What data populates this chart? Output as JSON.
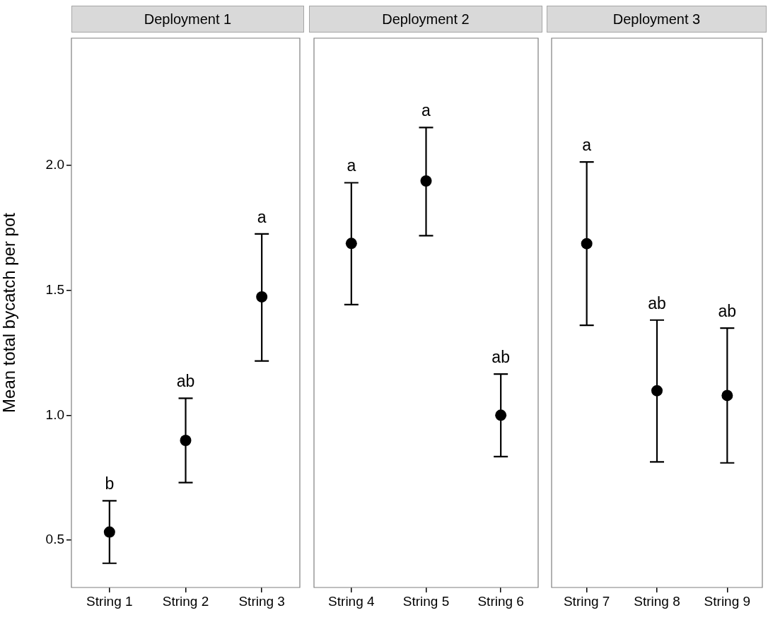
{
  "chart_data": [
    {
      "type": "scatter",
      "title": "Deployment 1",
      "ylabel": "Mean total bycatch per pot",
      "categories": [
        "String 1",
        "String 2",
        "String 3"
      ],
      "values": [
        0.532,
        0.899,
        1.474
      ],
      "color": "#000000",
      "marker": "circle",
      "errors": [
        [
          0.407,
          0.657
        ],
        [
          0.73,
          1.068
        ],
        [
          1.217,
          1.726
        ]
      ],
      "ylim": [
        0.31,
        2.51
      ],
      "yticks": [
        0.5,
        {
          "value": 1,
          "label": "1.0"
        },
        1.5,
        {
          "value": 2,
          "label": "2.0"
        }
      ],
      "grid": false,
      "annotations": [
        {
          "text": "b",
          "x": "String 1",
          "y": 0.657
        },
        {
          "text": "ab",
          "x": "String 2",
          "y": 1.068
        },
        {
          "text": "a",
          "x": "String 3",
          "y": 1.726
        }
      ]
    },
    {
      "type": "scatter",
      "title": "Deployment 2",
      "categories": [
        "String 4",
        "String 5",
        "String 6"
      ],
      "values": [
        1.688,
        1.938,
        1.0
      ],
      "color": "#000000",
      "marker": "circle",
      "errors": [
        [
          1.443,
          1.931
        ],
        [
          1.719,
          2.152
        ],
        [
          0.834,
          1.165
        ]
      ],
      "ylim": [
        0.31,
        2.51
      ],
      "yticks": [
        0.5,
        1.0,
        1.5,
        2.0
      ],
      "tick_labels": "x",
      "grid": false,
      "annotations": [
        {
          "text": "a",
          "x": "String 4",
          "y": 1.931
        },
        {
          "text": "a",
          "x": "String 5",
          "y": 2.152
        },
        {
          "text": "ab",
          "x": "String 6",
          "y": 1.165
        }
      ]
    },
    {
      "type": "scatter",
      "title": "Deployment 3",
      "categories": [
        "String 7",
        "String 8",
        "String 9"
      ],
      "values": [
        1.687,
        1.098,
        1.079
      ],
      "color": "#000000",
      "marker": "circle",
      "errors": [
        [
          1.36,
          2.014
        ],
        [
          0.813,
          1.381
        ],
        [
          0.809,
          1.349
        ]
      ],
      "ylim": [
        0.31,
        2.51
      ],
      "yticks": [
        0.5,
        1.0,
        1.5,
        2.0
      ],
      "tick_labels": "x",
      "grid": false,
      "annotations": [
        {
          "text": "a",
          "x": "String 7",
          "y": 2.014
        },
        {
          "text": "ab",
          "x": "String 8",
          "y": 1.381
        },
        {
          "text": "ab",
          "x": "String 9",
          "y": 1.349
        }
      ]
    }
  ]
}
